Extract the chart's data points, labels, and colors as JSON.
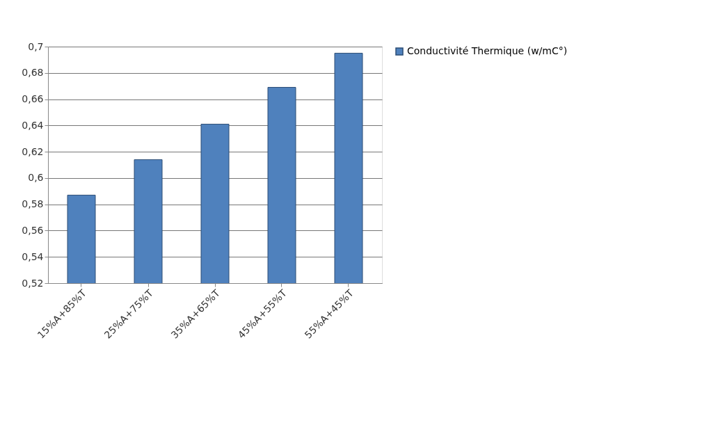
{
  "chart_data": {
    "type": "bar",
    "categories": [
      "15%A+85%T",
      "25%A+75%T",
      "35%A+65%T",
      "45%A+55%T",
      "55%A+45%T"
    ],
    "series": [
      {
        "name": "Conductivité Thermique (w/mC°)",
        "color": "#4f81bd",
        "values": [
          0.587,
          0.614,
          0.641,
          0.669,
          0.695
        ]
      }
    ],
    "ylim": [
      0.52,
      0.7
    ],
    "yticks": [
      {
        "value": 0.52,
        "label": "0,52"
      },
      {
        "value": 0.54,
        "label": "0,54"
      },
      {
        "value": 0.56,
        "label": "0,56"
      },
      {
        "value": 0.58,
        "label": "0,58"
      },
      {
        "value": 0.6,
        "label": "0,6"
      },
      {
        "value": 0.62,
        "label": "0,62"
      },
      {
        "value": 0.64,
        "label": "0,64"
      },
      {
        "value": 0.66,
        "label": "0,66"
      },
      {
        "value": 0.68,
        "label": "0,68"
      },
      {
        "value": 0.7,
        "label": "0,7"
      }
    ],
    "grid": "y",
    "legend": "right"
  }
}
